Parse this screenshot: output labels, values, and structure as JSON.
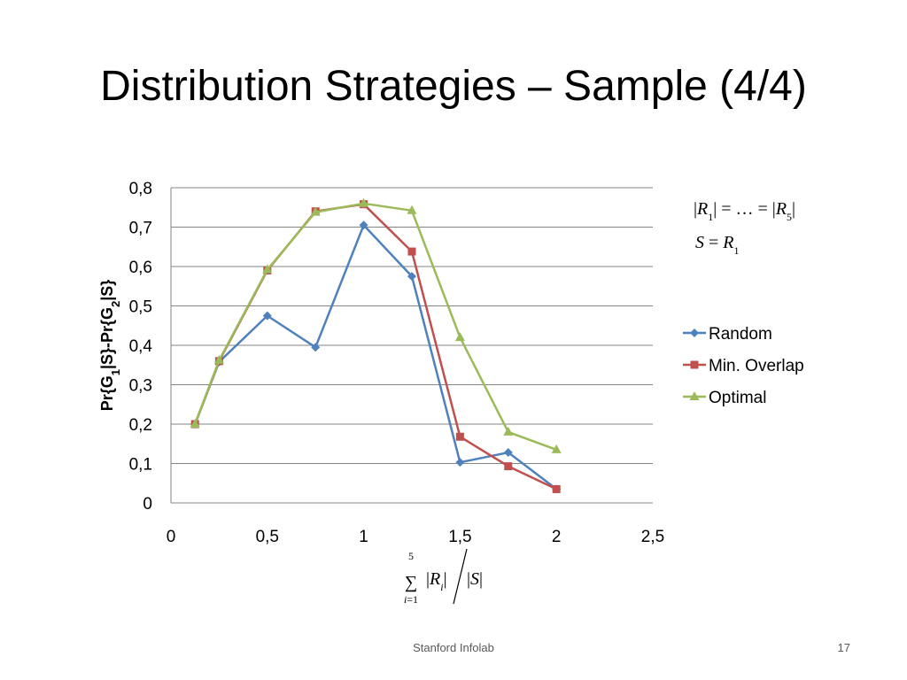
{
  "slide": {
    "title": "Distribution Strategies – Sample (4/4)",
    "footer_text": "Stanford Infolab",
    "page_number": "17"
  },
  "annotation": {
    "line1": "|R1| = ... = |R5|",
    "line2": "S = R1"
  },
  "colors": {
    "Random": "#4f81bd",
    "Min. Overlap": "#c0504d",
    "Optimal": "#9bbb59"
  },
  "chart_data": {
    "type": "line",
    "xlabel": "Σ(i=1..5) |Ri| / |S|",
    "ylabel": "Pr{G1|S}-Pr{G2|S}",
    "xlim": [
      0,
      2.5
    ],
    "ylim": [
      0,
      0.8
    ],
    "x_ticks": [
      "0",
      "0,5",
      "1",
      "1,5",
      "2",
      "2,5"
    ],
    "y_ticks": [
      "0",
      "0,1",
      "0,2",
      "0,3",
      "0,4",
      "0,5",
      "0,6",
      "0,7",
      "0,8"
    ],
    "grid": true,
    "legend_position": "right",
    "series": [
      {
        "name": "Random",
        "marker": "diamond",
        "x": [
          0.125,
          0.25,
          0.5,
          0.75,
          1.0,
          1.25,
          1.5,
          1.75,
          2.0
        ],
        "y": [
          0.2,
          0.358,
          0.475,
          0.395,
          0.705,
          0.575,
          0.103,
          0.128,
          0.035
        ]
      },
      {
        "name": "Min. Overlap",
        "marker": "square",
        "x": [
          0.125,
          0.25,
          0.5,
          0.75,
          1.0,
          1.25,
          1.5,
          1.75,
          2.0
        ],
        "y": [
          0.2,
          0.36,
          0.59,
          0.74,
          0.758,
          0.638,
          0.168,
          0.093,
          0.035
        ]
      },
      {
        "name": "Optimal",
        "marker": "triangle",
        "x": [
          0.125,
          0.25,
          0.5,
          0.75,
          1.0,
          1.25,
          1.5,
          1.75,
          2.0
        ],
        "y": [
          0.2,
          0.362,
          0.592,
          0.738,
          0.76,
          0.742,
          0.42,
          0.18,
          0.135
        ]
      }
    ]
  }
}
